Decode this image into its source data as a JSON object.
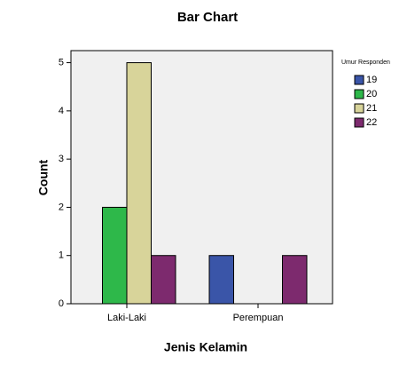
{
  "chart_data": {
    "type": "bar",
    "title": "Bar Chart",
    "xlabel": "Jenis Kelamin",
    "ylabel": "Count",
    "categories": [
      "Laki-Laki",
      "Perempuan"
    ],
    "legend_title": "Umur Responden",
    "series": [
      {
        "name": "19",
        "color": "#3a55a8",
        "values": [
          0,
          1
        ]
      },
      {
        "name": "20",
        "color": "#2eb84a",
        "values": [
          2,
          0
        ]
      },
      {
        "name": "21",
        "color": "#d8d49a",
        "values": [
          5,
          0
        ]
      },
      {
        "name": "22",
        "color": "#7d2a6e",
        "values": [
          1,
          1
        ]
      }
    ],
    "ylim": [
      0,
      5.25
    ],
    "yticks": [
      0,
      1,
      2,
      3,
      4,
      5
    ],
    "legend": "right"
  }
}
